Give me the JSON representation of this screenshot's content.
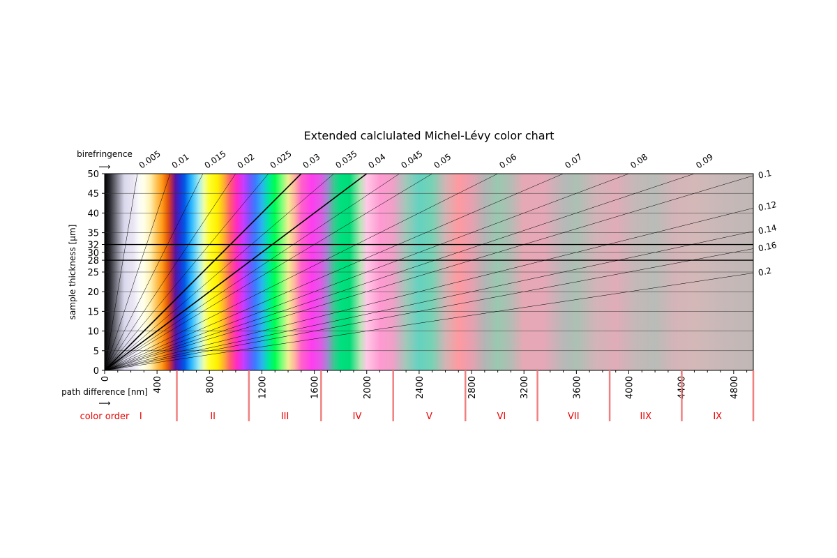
{
  "chart_data": {
    "type": "heatmap",
    "title": "Extended calclulated Michel-Lévy color chart",
    "xlabel": "path difference [nm]",
    "ylabel": "sample thickness [μm]",
    "birefringence_label": "birefringence",
    "arrow": "⟶",
    "xlim": [
      0,
      4950
    ],
    "ylim": [
      0,
      50
    ],
    "x_ticks": [
      0,
      400,
      800,
      1200,
      1600,
      2000,
      2400,
      2800,
      3200,
      3600,
      4000,
      4400,
      4800
    ],
    "y_ticks": [
      0,
      5,
      10,
      15,
      20,
      25,
      28,
      30,
      32,
      35,
      40,
      45,
      50
    ],
    "highlighted_thickness": [
      28,
      32
    ],
    "birefringence_lines": [
      0.005,
      0.01,
      0.015,
      0.02,
      0.025,
      0.03,
      0.035,
      0.04,
      0.045,
      0.05,
      0.06,
      0.07,
      0.08,
      0.09,
      0.1,
      0.12,
      0.14,
      0.16,
      0.2
    ],
    "highlighted_birefringence": [
      0.03,
      0.04
    ],
    "color_order_label": "color order",
    "color_orders": [
      {
        "label": "I",
        "start": 0,
        "end": 551
      },
      {
        "label": "II",
        "start": 551,
        "end": 1101
      },
      {
        "label": "III",
        "start": 1101,
        "end": 1652
      },
      {
        "label": "IV",
        "start": 1652,
        "end": 2202
      },
      {
        "label": "V",
        "start": 2202,
        "end": 2753
      },
      {
        "label": "VI",
        "start": 2753,
        "end": 3303
      },
      {
        "label": "VII",
        "start": 3303,
        "end": 3854
      },
      {
        "label": "IIX",
        "start": 3854,
        "end": 4404
      },
      {
        "label": "IX",
        "start": 4404,
        "end": 4950
      }
    ],
    "colors": {
      "order_separator": "#f08080",
      "order_text": "#e80000",
      "grid": "#333333"
    },
    "interference_colors": [
      {
        "x": 0,
        "color": "#000000"
      },
      {
        "x": 40,
        "color": "#2a2a30"
      },
      {
        "x": 100,
        "color": "#8a8a98"
      },
      {
        "x": 150,
        "color": "#d8d8ec"
      },
      {
        "x": 220,
        "color": "#ebe6f4"
      },
      {
        "x": 260,
        "color": "#fafafa"
      },
      {
        "x": 300,
        "color": "#ffffe8"
      },
      {
        "x": 350,
        "color": "#fff0b0"
      },
      {
        "x": 400,
        "color": "#ffc050"
      },
      {
        "x": 440,
        "color": "#ff9a18"
      },
      {
        "x": 480,
        "color": "#e55a08"
      },
      {
        "x": 510,
        "color": "#b42850"
      },
      {
        "x": 540,
        "color": "#5a14a0"
      },
      {
        "x": 570,
        "color": "#2a2ad2"
      },
      {
        "x": 610,
        "color": "#005ae6"
      },
      {
        "x": 660,
        "color": "#28b4ff"
      },
      {
        "x": 720,
        "color": "#a8f0f0"
      },
      {
        "x": 760,
        "color": "#f0ffa0"
      },
      {
        "x": 800,
        "color": "#ffff28"
      },
      {
        "x": 860,
        "color": "#fff000"
      },
      {
        "x": 910,
        "color": "#ffb030"
      },
      {
        "x": 960,
        "color": "#ff5a70"
      },
      {
        "x": 1010,
        "color": "#ff28c8"
      },
      {
        "x": 1060,
        "color": "#c83cff"
      },
      {
        "x": 1100,
        "color": "#8250ff"
      },
      {
        "x": 1150,
        "color": "#3a7cff"
      },
      {
        "x": 1200,
        "color": "#2ab4f0"
      },
      {
        "x": 1250,
        "color": "#00e8a0"
      },
      {
        "x": 1300,
        "color": "#00ff50"
      },
      {
        "x": 1350,
        "color": "#78ff78"
      },
      {
        "x": 1400,
        "color": "#f0f090"
      },
      {
        "x": 1450,
        "color": "#ffb4a0"
      },
      {
        "x": 1500,
        "color": "#ff64c8"
      },
      {
        "x": 1580,
        "color": "#ff3cf0"
      },
      {
        "x": 1650,
        "color": "#e05ae6"
      },
      {
        "x": 1700,
        "color": "#a088d0"
      },
      {
        "x": 1750,
        "color": "#3cc890"
      },
      {
        "x": 1800,
        "color": "#00e080"
      },
      {
        "x": 1870,
        "color": "#00dc78"
      },
      {
        "x": 1950,
        "color": "#b4e6b4"
      },
      {
        "x": 2000,
        "color": "#ffc8e6"
      },
      {
        "x": 2100,
        "color": "#ff9ad2"
      },
      {
        "x": 2200,
        "color": "#f0a0c8"
      },
      {
        "x": 2300,
        "color": "#a0c8b8"
      },
      {
        "x": 2400,
        "color": "#64d2c0"
      },
      {
        "x": 2500,
        "color": "#78d2b4"
      },
      {
        "x": 2600,
        "color": "#d2b4b4"
      },
      {
        "x": 2700,
        "color": "#ff9aa0"
      },
      {
        "x": 2800,
        "color": "#e6a0b0"
      },
      {
        "x": 2900,
        "color": "#b4b4b4"
      },
      {
        "x": 3000,
        "color": "#9ac8b0"
      },
      {
        "x": 3100,
        "color": "#b4bcb4"
      },
      {
        "x": 3200,
        "color": "#e6a8b4"
      },
      {
        "x": 3350,
        "color": "#e6a8b8"
      },
      {
        "x": 3500,
        "color": "#b8b8b8"
      },
      {
        "x": 3600,
        "color": "#acc0b4"
      },
      {
        "x": 3750,
        "color": "#d2b4b8"
      },
      {
        "x": 3900,
        "color": "#e0acb8"
      },
      {
        "x": 4050,
        "color": "#c4b8b8"
      },
      {
        "x": 4200,
        "color": "#b8bcb8"
      },
      {
        "x": 4350,
        "color": "#d4b4b8"
      },
      {
        "x": 4500,
        "color": "#d4b8b8"
      },
      {
        "x": 4700,
        "color": "#c8b8b8"
      },
      {
        "x": 4950,
        "color": "#c0b8b6"
      }
    ]
  }
}
